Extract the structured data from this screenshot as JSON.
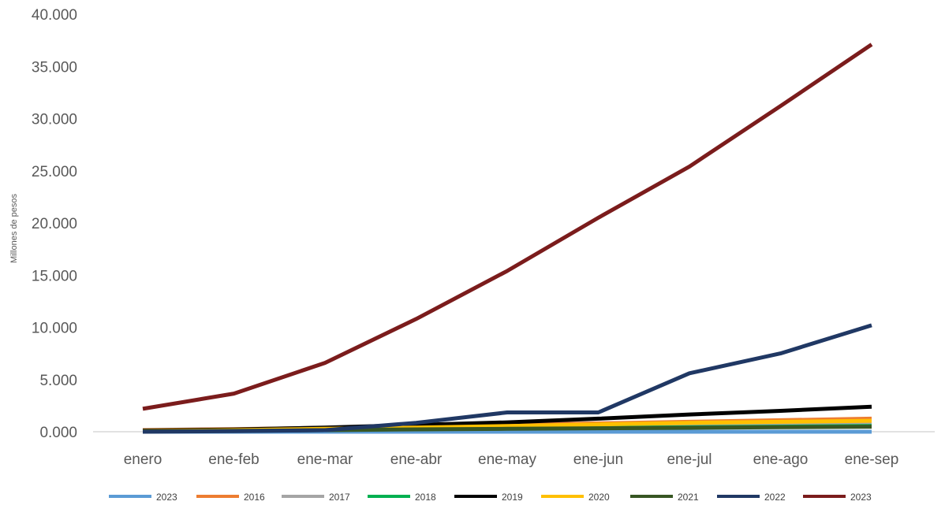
{
  "chart_data": {
    "type": "line",
    "title": "",
    "xlabel": "",
    "ylabel": "Millones de pesos",
    "ylim": [
      0,
      40000
    ],
    "yticks": [
      0,
      5000,
      10000,
      15000,
      20000,
      25000,
      30000,
      35000,
      40000
    ],
    "ytick_labels": [
      "0.000",
      "5.000",
      "10.000",
      "15.000",
      "20.000",
      "25.000",
      "30.000",
      "35.000",
      "40.000"
    ],
    "categories": [
      "enero",
      "ene-feb",
      "ene-mar",
      "ene-abr",
      "ene-may",
      "ene-jun",
      "ene-jul",
      "ene-ago",
      "ene-sep"
    ],
    "grid": false,
    "legend_position": "bottom",
    "series": [
      {
        "name": "2023",
        "color": "#5b9bd5",
        "values": [
          0,
          0,
          0,
          0,
          0,
          0,
          0,
          0,
          0
        ]
      },
      {
        "name": "2016",
        "color": "#ed7d31",
        "values": [
          150,
          250,
          380,
          500,
          650,
          800,
          950,
          1100,
          1250
        ]
      },
      {
        "name": "2017",
        "color": "#a5a5a5",
        "values": [
          100,
          180,
          280,
          380,
          500,
          600,
          700,
          800,
          900
        ]
      },
      {
        "name": "2018",
        "color": "#00b050",
        "values": [
          60,
          120,
          180,
          240,
          300,
          360,
          420,
          480,
          540
        ]
      },
      {
        "name": "2019",
        "color": "#000000",
        "values": [
          120,
          220,
          400,
          650,
          900,
          1250,
          1650,
          2000,
          2400
        ]
      },
      {
        "name": "2020",
        "color": "#ffc000",
        "values": [
          50,
          150,
          280,
          400,
          550,
          700,
          850,
          950,
          1050
        ]
      },
      {
        "name": "2021",
        "color": "#375623",
        "values": [
          30,
          80,
          150,
          230,
          280,
          330,
          380,
          430,
          480
        ]
      },
      {
        "name": "2022",
        "color": "#203864",
        "values": [
          0,
          50,
          150,
          850,
          1850,
          1850,
          5600,
          7500,
          10200
        ]
      },
      {
        "name": "2023",
        "color": "#7b1c1c",
        "values": [
          2200,
          3650,
          6600,
          10800,
          15400,
          20500,
          25400,
          31200,
          37100
        ]
      }
    ]
  }
}
